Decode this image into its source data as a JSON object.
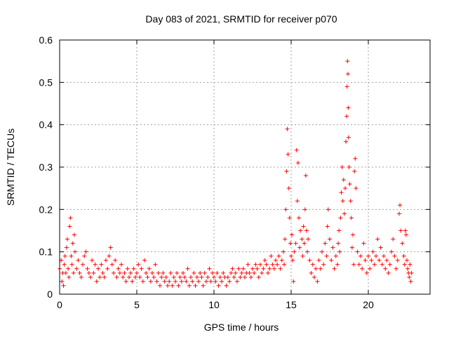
{
  "chart_data": {
    "type": "scatter",
    "title": "Day 083 of 2021, SRMTID for receiver p070",
    "xlabel": "GPS time / hours",
    "ylabel": "SRMTID / TECUs",
    "xlim": [
      0,
      24
    ],
    "ylim": [
      0,
      0.6
    ],
    "xticks": [
      0,
      5,
      10,
      15,
      20
    ],
    "xtick_labels": [
      "0",
      "5",
      "10",
      "15",
      "20"
    ],
    "yticks": [
      0,
      0.1,
      0.2,
      0.3,
      0.4,
      0.5,
      0.6
    ],
    "ytick_labels": [
      "0",
      "0.1",
      "0.2",
      "0.3",
      "0.4",
      "0.5",
      "0.6"
    ],
    "grid": true,
    "marker": "+",
    "series_color": "#ff0000",
    "series": [
      {
        "name": "SRMTID",
        "points": [
          [
            0.0,
            0.06
          ],
          [
            0.1,
            0.08
          ],
          [
            0.15,
            0.03
          ],
          [
            0.2,
            0.05
          ],
          [
            0.25,
            0.02
          ],
          [
            0.3,
            0.07
          ],
          [
            0.35,
            0.09
          ],
          [
            0.4,
            0.05
          ],
          [
            0.45,
            0.11
          ],
          [
            0.5,
            0.13
          ],
          [
            0.55,
            0.06
          ],
          [
            0.6,
            0.04
          ],
          [
            0.65,
            0.16
          ],
          [
            0.7,
            0.18
          ],
          [
            0.75,
            0.09
          ],
          [
            0.8,
            0.07
          ],
          [
            0.85,
            0.12
          ],
          [
            0.9,
            0.05
          ],
          [
            0.95,
            0.14
          ],
          [
            1.0,
            0.1
          ],
          [
            1.1,
            0.06
          ],
          [
            1.2,
            0.08
          ],
          [
            1.3,
            0.05
          ],
          [
            1.4,
            0.04
          ],
          [
            1.5,
            0.07
          ],
          [
            1.6,
            0.09
          ],
          [
            1.7,
            0.1
          ],
          [
            1.8,
            0.06
          ],
          [
            1.9,
            0.05
          ],
          [
            2.0,
            0.04
          ],
          [
            2.1,
            0.08
          ],
          [
            2.2,
            0.05
          ],
          [
            2.3,
            0.07
          ],
          [
            2.4,
            0.03
          ],
          [
            2.5,
            0.06
          ],
          [
            2.6,
            0.04
          ],
          [
            2.7,
            0.07
          ],
          [
            2.8,
            0.05
          ],
          [
            2.9,
            0.04
          ],
          [
            3.0,
            0.08
          ],
          [
            3.1,
            0.06
          ],
          [
            3.2,
            0.09
          ],
          [
            3.3,
            0.11
          ],
          [
            3.4,
            0.07
          ],
          [
            3.5,
            0.05
          ],
          [
            3.6,
            0.08
          ],
          [
            3.7,
            0.04
          ],
          [
            3.8,
            0.06
          ],
          [
            3.9,
            0.05
          ],
          [
            4.0,
            0.07
          ],
          [
            4.1,
            0.04
          ],
          [
            4.2,
            0.05
          ],
          [
            4.3,
            0.03
          ],
          [
            4.4,
            0.06
          ],
          [
            4.5,
            0.04
          ],
          [
            4.6,
            0.05
          ],
          [
            4.7,
            0.03
          ],
          [
            4.8,
            0.06
          ],
          [
            4.9,
            0.04
          ],
          [
            5.0,
            0.05
          ],
          [
            5.1,
            0.07
          ],
          [
            5.2,
            0.04
          ],
          [
            5.3,
            0.06
          ],
          [
            5.4,
            0.03
          ],
          [
            5.5,
            0.08
          ],
          [
            5.6,
            0.05
          ],
          [
            5.7,
            0.04
          ],
          [
            5.8,
            0.06
          ],
          [
            5.9,
            0.03
          ],
          [
            6.0,
            0.05
          ],
          [
            6.1,
            0.04
          ],
          [
            6.2,
            0.07
          ],
          [
            6.3,
            0.03
          ],
          [
            6.4,
            0.05
          ],
          [
            6.5,
            0.02
          ],
          [
            6.6,
            0.04
          ],
          [
            6.7,
            0.05
          ],
          [
            6.8,
            0.03
          ],
          [
            6.9,
            0.04
          ],
          [
            7.0,
            0.02
          ],
          [
            7.1,
            0.03
          ],
          [
            7.2,
            0.05
          ],
          [
            7.3,
            0.02
          ],
          [
            7.4,
            0.04
          ],
          [
            7.5,
            0.03
          ],
          [
            7.6,
            0.05
          ],
          [
            7.7,
            0.02
          ],
          [
            7.8,
            0.04
          ],
          [
            7.9,
            0.03
          ],
          [
            8.0,
            0.05
          ],
          [
            8.1,
            0.04
          ],
          [
            8.2,
            0.03
          ],
          [
            8.3,
            0.06
          ],
          [
            8.4,
            0.02
          ],
          [
            8.5,
            0.04
          ],
          [
            8.6,
            0.03
          ],
          [
            8.7,
            0.05
          ],
          [
            8.8,
            0.02
          ],
          [
            8.9,
            0.04
          ],
          [
            9.0,
            0.03
          ],
          [
            9.1,
            0.05
          ],
          [
            9.2,
            0.04
          ],
          [
            9.3,
            0.02
          ],
          [
            9.4,
            0.05
          ],
          [
            9.5,
            0.03
          ],
          [
            9.6,
            0.04
          ],
          [
            9.7,
            0.06
          ],
          [
            9.8,
            0.03
          ],
          [
            9.9,
            0.05
          ],
          [
            10.0,
            0.04
          ],
          [
            10.1,
            0.03
          ],
          [
            10.2,
            0.05
          ],
          [
            10.3,
            0.02
          ],
          [
            10.4,
            0.04
          ],
          [
            10.5,
            0.03
          ],
          [
            10.6,
            0.05
          ],
          [
            10.7,
            0.04
          ],
          [
            10.8,
            0.02
          ],
          [
            10.9,
            0.04
          ],
          [
            11.0,
            0.03
          ],
          [
            11.1,
            0.05
          ],
          [
            11.2,
            0.06
          ],
          [
            11.3,
            0.04
          ],
          [
            11.4,
            0.05
          ],
          [
            11.5,
            0.03
          ],
          [
            11.6,
            0.06
          ],
          [
            11.7,
            0.04
          ],
          [
            11.8,
            0.05
          ],
          [
            11.9,
            0.06
          ],
          [
            12.0,
            0.04
          ],
          [
            12.1,
            0.05
          ],
          [
            12.2,
            0.07
          ],
          [
            12.3,
            0.05
          ],
          [
            12.4,
            0.04
          ],
          [
            12.5,
            0.06
          ],
          [
            12.6,
            0.05
          ],
          [
            12.7,
            0.07
          ],
          [
            12.8,
            0.06
          ],
          [
            12.9,
            0.04
          ],
          [
            13.0,
            0.07
          ],
          [
            13.1,
            0.05
          ],
          [
            13.2,
            0.06
          ],
          [
            13.3,
            0.08
          ],
          [
            13.4,
            0.07
          ],
          [
            13.5,
            0.05
          ],
          [
            13.6,
            0.06
          ],
          [
            13.7,
            0.09
          ],
          [
            13.8,
            0.07
          ],
          [
            13.9,
            0.06
          ],
          [
            14.0,
            0.08
          ],
          [
            14.1,
            0.07
          ],
          [
            14.2,
            0.09
          ],
          [
            14.3,
            0.06
          ],
          [
            14.4,
            0.08
          ],
          [
            14.5,
            0.1
          ],
          [
            14.55,
            0.07
          ],
          [
            14.6,
            0.13
          ],
          [
            14.65,
            0.2
          ],
          [
            14.7,
            0.29
          ],
          [
            14.75,
            0.39
          ],
          [
            14.8,
            0.33
          ],
          [
            14.85,
            0.25
          ],
          [
            14.9,
            0.18
          ],
          [
            14.95,
            0.12
          ],
          [
            15.0,
            0.09
          ],
          [
            15.05,
            0.14
          ],
          [
            15.1,
            0.08
          ],
          [
            15.15,
            0.03
          ],
          [
            15.2,
            0.1
          ],
          [
            15.3,
            0.12
          ],
          [
            15.35,
            0.34
          ],
          [
            15.4,
            0.22
          ],
          [
            15.45,
            0.31
          ],
          [
            15.5,
            0.18
          ],
          [
            15.55,
            0.11
          ],
          [
            15.6,
            0.15
          ],
          [
            15.7,
            0.13
          ],
          [
            15.75,
            0.09
          ],
          [
            15.8,
            0.16
          ],
          [
            15.85,
            0.12
          ],
          [
            15.9,
            0.2
          ],
          [
            15.95,
            0.28
          ],
          [
            16.0,
            0.15
          ],
          [
            16.05,
            0.1
          ],
          [
            16.1,
            0.13
          ],
          [
            16.2,
            0.08
          ],
          [
            16.3,
            0.05
          ],
          [
            16.4,
            0.07
          ],
          [
            16.5,
            0.04
          ],
          [
            16.6,
            0.06
          ],
          [
            16.7,
            0.03
          ],
          [
            16.8,
            0.08
          ],
          [
            16.9,
            0.06
          ],
          [
            17.0,
            0.1
          ],
          [
            17.1,
            0.07
          ],
          [
            17.2,
            0.12
          ],
          [
            17.3,
            0.09
          ],
          [
            17.35,
            0.16
          ],
          [
            17.4,
            0.2
          ],
          [
            17.5,
            0.13
          ],
          [
            17.6,
            0.08
          ],
          [
            17.7,
            0.11
          ],
          [
            17.8,
            0.06
          ],
          [
            17.9,
            0.09
          ],
          [
            18.0,
            0.07
          ],
          [
            18.05,
            0.12
          ],
          [
            18.1,
            0.15
          ],
          [
            18.15,
            0.1
          ],
          [
            18.2,
            0.18
          ],
          [
            18.25,
            0.24
          ],
          [
            18.3,
            0.3
          ],
          [
            18.35,
            0.22
          ],
          [
            18.4,
            0.27
          ],
          [
            18.45,
            0.19
          ],
          [
            18.5,
            0.25
          ],
          [
            18.55,
            0.36
          ],
          [
            18.6,
            0.42
          ],
          [
            18.62,
            0.49
          ],
          [
            18.65,
            0.55
          ],
          [
            18.68,
            0.52
          ],
          [
            18.7,
            0.44
          ],
          [
            18.72,
            0.37
          ],
          [
            18.75,
            0.3
          ],
          [
            18.8,
            0.26
          ],
          [
            18.85,
            0.22
          ],
          [
            18.9,
            0.18
          ],
          [
            18.95,
            0.11
          ],
          [
            19.0,
            0.14
          ],
          [
            19.05,
            0.07
          ],
          [
            19.1,
            0.29
          ],
          [
            19.15,
            0.32
          ],
          [
            19.2,
            0.25
          ],
          [
            19.3,
            0.1
          ],
          [
            19.4,
            0.07
          ],
          [
            19.5,
            0.09
          ],
          [
            19.6,
            0.06
          ],
          [
            19.7,
            0.12
          ],
          [
            19.8,
            0.08
          ],
          [
            19.9,
            0.05
          ],
          [
            20.0,
            0.09
          ],
          [
            20.1,
            0.06
          ],
          [
            20.2,
            0.08
          ],
          [
            20.3,
            0.1
          ],
          [
            20.4,
            0.07
          ],
          [
            20.5,
            0.09
          ],
          [
            20.6,
            0.13
          ],
          [
            20.7,
            0.08
          ],
          [
            20.8,
            0.11
          ],
          [
            20.9,
            0.07
          ],
          [
            21.0,
            0.09
          ],
          [
            21.1,
            0.06
          ],
          [
            21.2,
            0.08
          ],
          [
            21.3,
            0.05
          ],
          [
            21.4,
            0.07
          ],
          [
            21.5,
            0.1
          ],
          [
            21.6,
            0.13
          ],
          [
            21.7,
            0.09
          ],
          [
            21.8,
            0.06
          ],
          [
            21.9,
            0.08
          ],
          [
            22.0,
            0.19
          ],
          [
            22.05,
            0.21
          ],
          [
            22.1,
            0.15
          ],
          [
            22.2,
            0.12
          ],
          [
            22.3,
            0.09
          ],
          [
            22.35,
            0.07
          ],
          [
            22.4,
            0.15
          ],
          [
            22.45,
            0.14
          ],
          [
            22.5,
            0.08
          ],
          [
            22.55,
            0.06
          ],
          [
            22.6,
            0.05
          ],
          [
            22.65,
            0.04
          ],
          [
            22.7,
            0.07
          ],
          [
            22.75,
            0.03
          ],
          [
            22.8,
            0.05
          ]
        ]
      }
    ]
  }
}
